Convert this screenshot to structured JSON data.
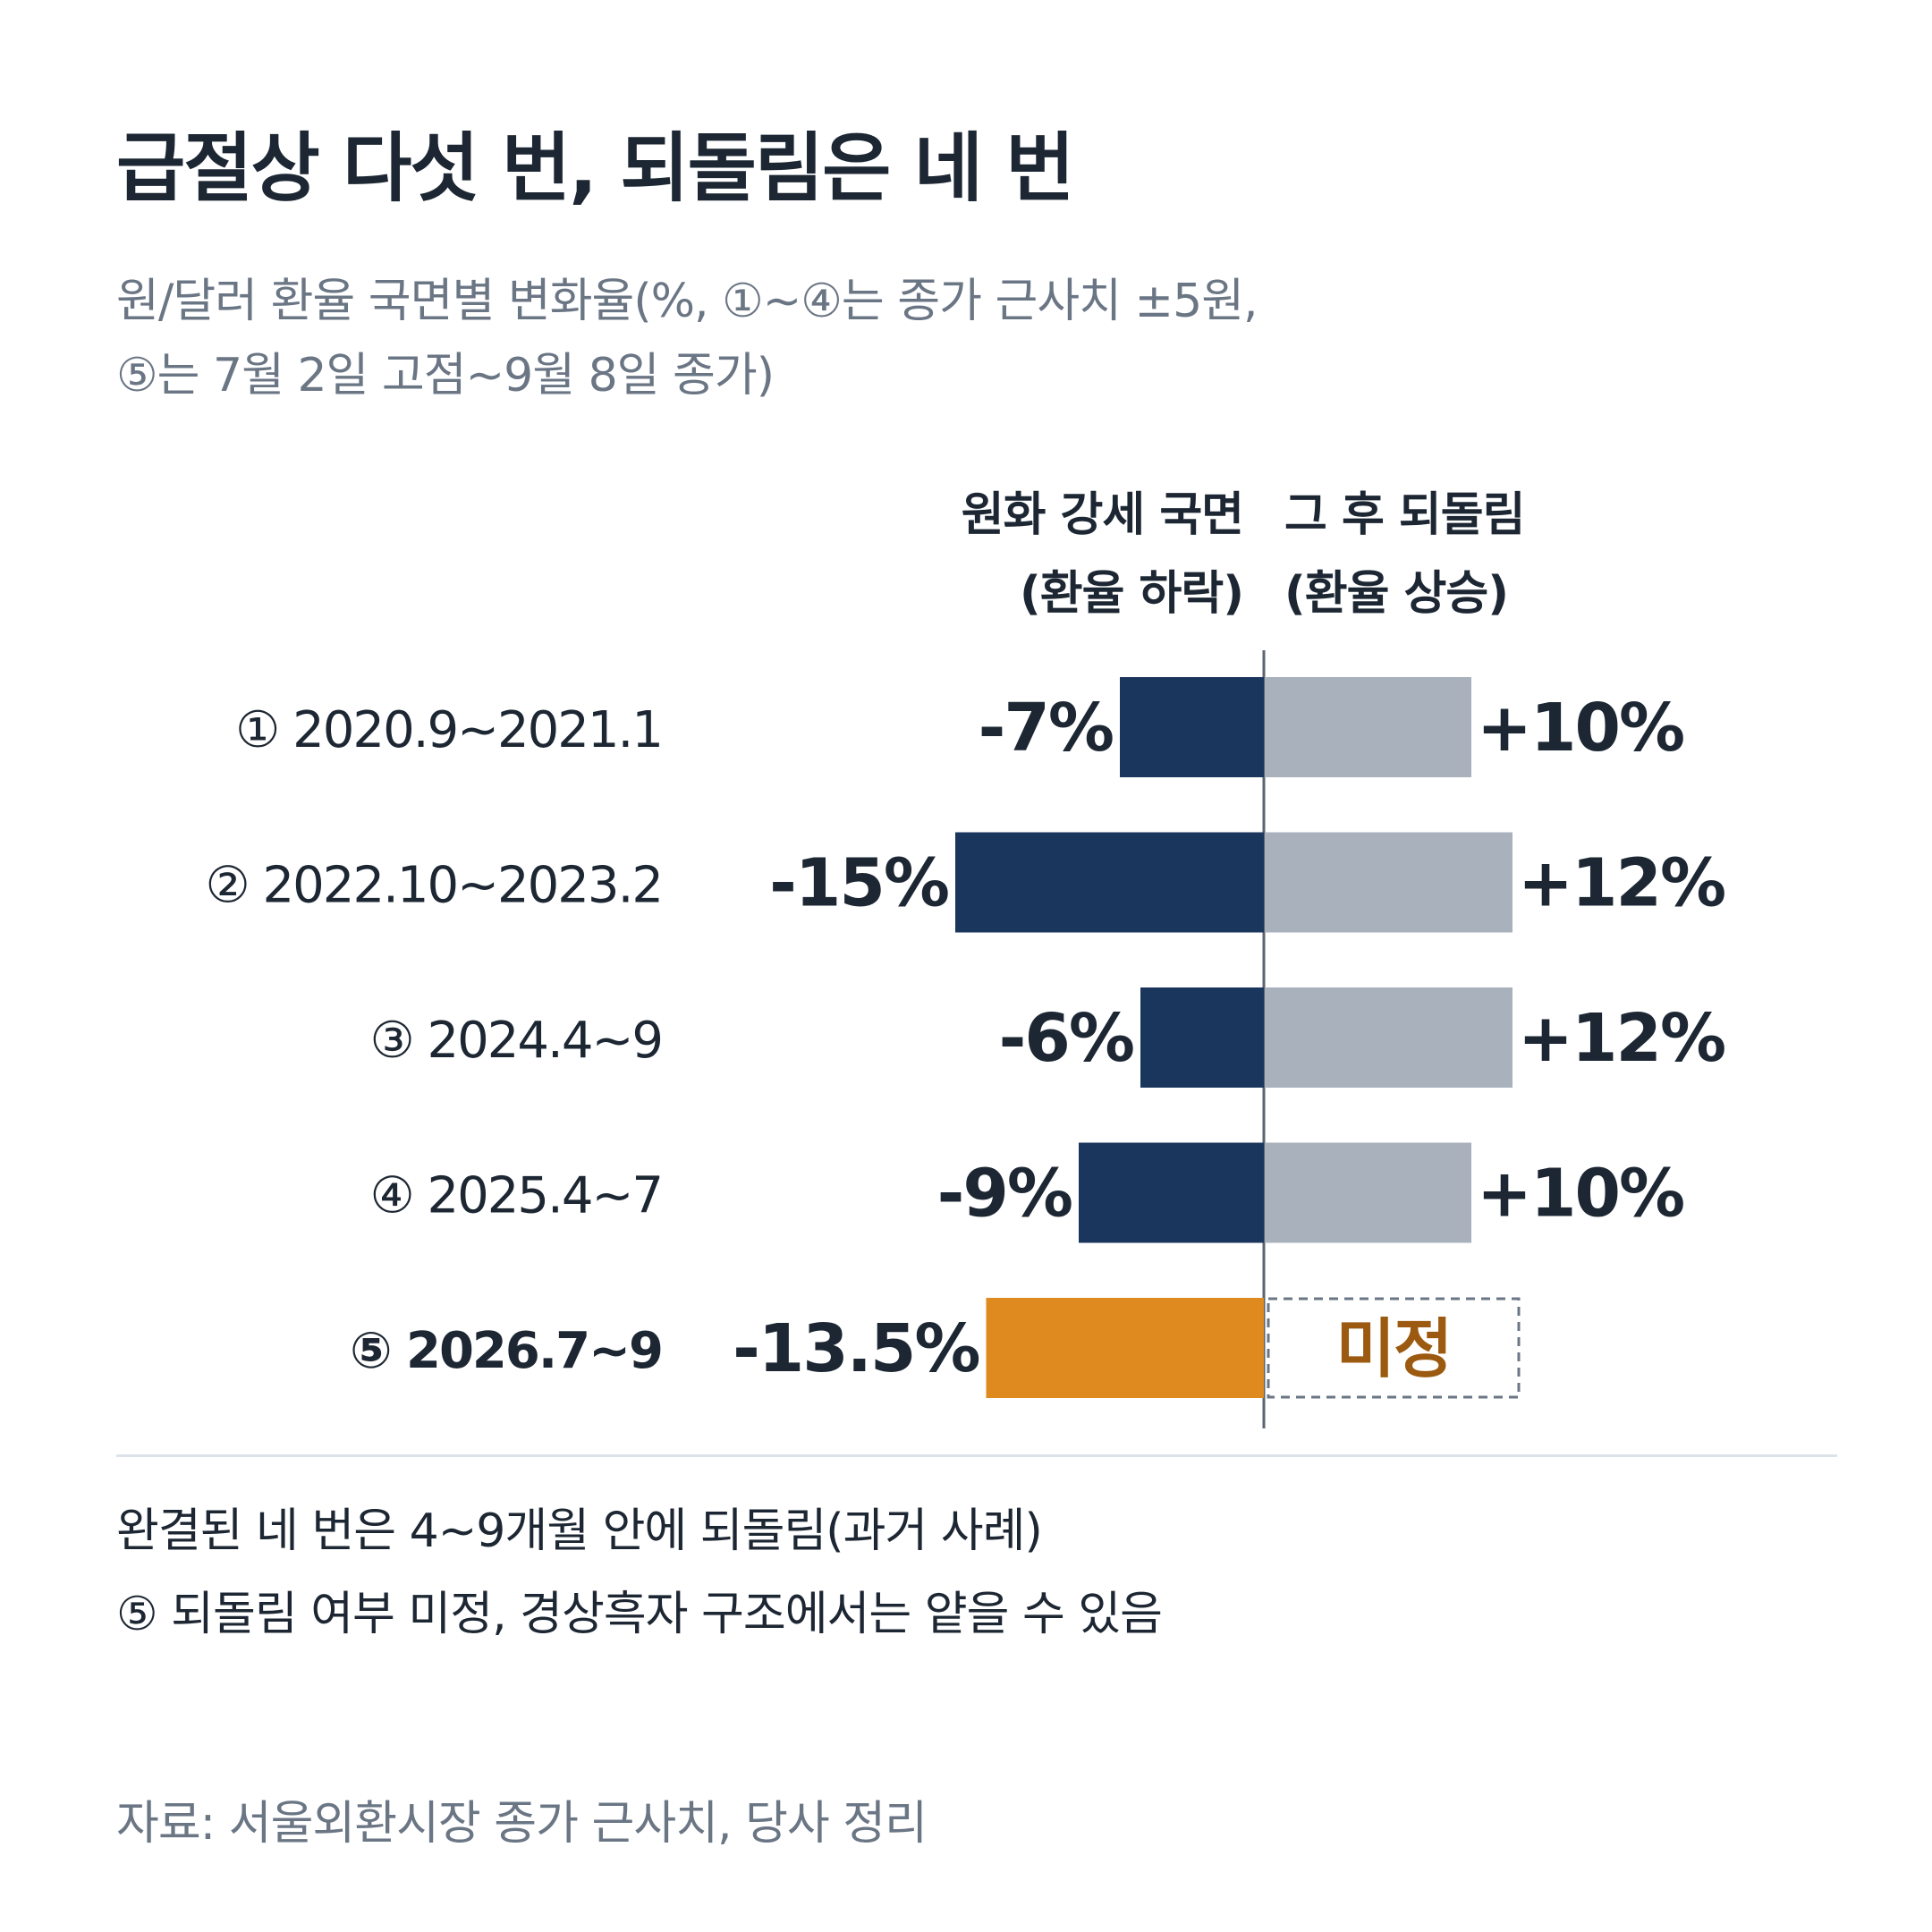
{
  "title": "급절상 다섯 번, 되돌림은 네 번",
  "subtitle": {
    "line1": "원/달러 환율 국면별 변화율(%, ①~④는 종가 근사치 ±5원,",
    "line2": "⑤는 7월 2일 고점~9월 8일 종가)"
  },
  "column_headers": {
    "left_line1": "원화 강세 국면",
    "left_line2": "(환율 하락)",
    "right_line1": "그 후 되돌림",
    "right_line2": "(환율 상승)"
  },
  "chart_data": {
    "type": "bar",
    "orientation": "horizontal-diverging",
    "categories": [
      "① 2020.9~2021.1",
      "② 2022.10~2023.2",
      "③ 2024.4~9",
      "④ 2025.4~7",
      "⑤ 2026.7~9"
    ],
    "series": [
      {
        "name": "원화 강세 국면 (환율 하락)",
        "values": [
          -7,
          -15,
          -6,
          -9,
          -13.5
        ],
        "labels": [
          "-7%",
          "-15%",
          "-6%",
          "-9%",
          "-13.5%"
        ]
      },
      {
        "name": "그 후 되돌림 (환율 상승)",
        "values": [
          10,
          12,
          12,
          10,
          null
        ],
        "labels": [
          "+10%",
          "+12%",
          "+12%",
          "+10%",
          "미정"
        ]
      }
    ],
    "highlight_index": 4,
    "pending_label": "미정",
    "colors": {
      "decline": "#1b365d",
      "rebound": "#a8b1bc",
      "highlight": "#de8a1f",
      "pending_text": "#9b5a10",
      "pending_border": "#6b7685",
      "axis": "#5b6472"
    }
  },
  "notes": {
    "line1": "완결된 네 번은 4~9개월 안에 되돌림(과거 사례)",
    "line2": "⑤ 되돌림 여부 미정, 경상흑자 구조에서는 얕을 수 있음"
  },
  "source": "자료: 서울외환시장 종가 근사치, 당사 정리"
}
